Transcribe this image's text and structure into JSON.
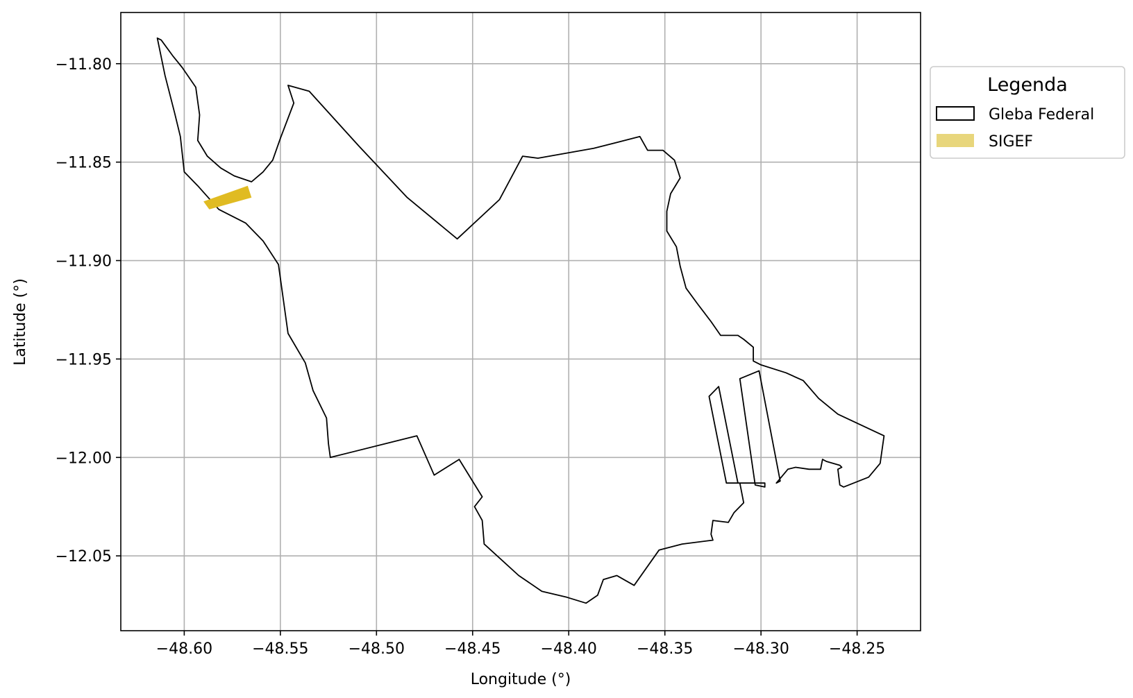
{
  "chart_data": {
    "type": "map",
    "xlabel": "Longitude (°)",
    "ylabel": "Latitude (°)",
    "xlim": [
      -48.633,
      -48.217
    ],
    "ylim": [
      -12.088,
      -11.774
    ],
    "x_ticks": [
      -48.6,
      -48.55,
      -48.5,
      -48.45,
      -48.4,
      -48.35,
      -48.3,
      -48.25
    ],
    "x_tick_labels": [
      "−48.60",
      "−48.55",
      "−48.50",
      "−48.45",
      "−48.40",
      "−48.35",
      "−48.30",
      "−48.25"
    ],
    "y_ticks": [
      -11.8,
      -11.85,
      -11.9,
      -11.95,
      -12.0,
      -12.05
    ],
    "y_tick_labels": [
      "−11.80",
      "−11.85",
      "−11.90",
      "−11.95",
      "−12.00",
      "−12.05"
    ],
    "grid": true,
    "legend": {
      "title": "Legenda",
      "placement": "outside-upper-right",
      "entries": [
        {
          "label": "Gleba Federal",
          "style": "outline",
          "edge_color": "#000000",
          "fill_color": "#ffffff"
        },
        {
          "label": "SIGEF",
          "style": "filled",
          "fill_color": "#e8d67c"
        }
      ]
    },
    "layers": [
      {
        "name": "Gleba Federal",
        "edge_color": "#000000",
        "fill": "none",
        "polygons": [
          [
            [
              -48.614,
              -11.787
            ],
            [
              -48.612,
              -11.788
            ],
            [
              -48.606,
              -11.796
            ],
            [
              -48.601,
              -11.802
            ],
            [
              -48.594,
              -11.812
            ],
            [
              -48.592,
              -11.826
            ],
            [
              -48.593,
              -11.839
            ],
            [
              -48.588,
              -11.847
            ],
            [
              -48.581,
              -11.853
            ],
            [
              -48.574,
              -11.857
            ],
            [
              -48.565,
              -11.86
            ],
            [
              -48.559,
              -11.855
            ],
            [
              -48.554,
              -11.849
            ],
            [
              -48.55,
              -11.838
            ],
            [
              -48.543,
              -11.82
            ],
            [
              -48.546,
              -11.811
            ],
            [
              -48.535,
              -11.814
            ],
            [
              -48.509,
              -11.842
            ],
            [
              -48.484,
              -11.868
            ],
            [
              -48.458,
              -11.889
            ],
            [
              -48.436,
              -11.869
            ],
            [
              -48.424,
              -11.847
            ],
            [
              -48.416,
              -11.848
            ],
            [
              -48.387,
              -11.843
            ],
            [
              -48.363,
              -11.837
            ],
            [
              -48.359,
              -11.844
            ],
            [
              -48.351,
              -11.844
            ],
            [
              -48.345,
              -11.849
            ],
            [
              -48.342,
              -11.858
            ],
            [
              -48.347,
              -11.866
            ],
            [
              -48.349,
              -11.875
            ],
            [
              -48.349,
              -11.885
            ],
            [
              -48.344,
              -11.893
            ],
            [
              -48.342,
              -11.903
            ],
            [
              -48.339,
              -11.914
            ],
            [
              -48.333,
              -11.922
            ],
            [
              -48.326,
              -11.931
            ],
            [
              -48.321,
              -11.938
            ],
            [
              -48.312,
              -11.938
            ],
            [
              -48.309,
              -11.94
            ],
            [
              -48.304,
              -11.944
            ],
            [
              -48.304,
              -11.951
            ],
            [
              -48.3,
              -11.953
            ],
            [
              -48.287,
              -11.957
            ],
            [
              -48.278,
              -11.961
            ],
            [
              -48.27,
              -11.97
            ],
            [
              -48.26,
              -11.978
            ],
            [
              -48.236,
              -11.989
            ],
            [
              -48.238,
              -12.003
            ],
            [
              -48.244,
              -12.01
            ],
            [
              -48.257,
              -12.015
            ],
            [
              -48.259,
              -12.014
            ],
            [
              -48.26,
              -12.006
            ],
            [
              -48.258,
              -12.005
            ],
            [
              -48.259,
              -12.004
            ],
            [
              -48.266,
              -12.002
            ],
            [
              -48.268,
              -12.001
            ],
            [
              -48.269,
              -12.006
            ],
            [
              -48.275,
              -12.006
            ],
            [
              -48.282,
              -12.005
            ],
            [
              -48.286,
              -12.006
            ],
            [
              -48.292,
              -12.013
            ],
            [
              -48.29,
              -12.012
            ],
            [
              -48.301,
              -11.956
            ],
            [
              -48.311,
              -11.96
            ],
            [
              -48.303,
              -12.014
            ],
            [
              -48.298,
              -12.015
            ],
            [
              -48.298,
              -12.013
            ],
            [
              -48.312,
              -12.013
            ],
            [
              -48.322,
              -11.964
            ],
            [
              -48.327,
              -11.969
            ],
            [
              -48.318,
              -12.013
            ],
            [
              -48.311,
              -12.013
            ],
            [
              -48.309,
              -12.023
            ],
            [
              -48.314,
              -12.028
            ],
            [
              -48.317,
              -12.033
            ],
            [
              -48.325,
              -12.032
            ],
            [
              -48.326,
              -12.039
            ],
            [
              -48.325,
              -12.042
            ],
            [
              -48.341,
              -12.044
            ],
            [
              -48.353,
              -12.047
            ],
            [
              -48.366,
              -12.065
            ],
            [
              -48.375,
              -12.06
            ],
            [
              -48.382,
              -12.062
            ],
            [
              -48.385,
              -12.07
            ],
            [
              -48.391,
              -12.074
            ],
            [
              -48.401,
              -12.071
            ],
            [
              -48.414,
              -12.068
            ],
            [
              -48.426,
              -12.06
            ],
            [
              -48.444,
              -12.044
            ],
            [
              -48.445,
              -12.032
            ],
            [
              -48.449,
              -12.025
            ],
            [
              -48.445,
              -12.02
            ],
            [
              -48.457,
              -12.001
            ],
            [
              -48.47,
              -12.009
            ],
            [
              -48.479,
              -11.989
            ],
            [
              -48.524,
              -12.0
            ],
            [
              -48.525,
              -11.993
            ],
            [
              -48.526,
              -11.98
            ],
            [
              -48.533,
              -11.966
            ],
            [
              -48.537,
              -11.952
            ],
            [
              -48.546,
              -11.937
            ],
            [
              -48.551,
              -11.902
            ],
            [
              -48.559,
              -11.89
            ],
            [
              -48.568,
              -11.881
            ],
            [
              -48.582,
              -11.874
            ],
            [
              -48.593,
              -11.862
            ],
            [
              -48.6,
              -11.855
            ],
            [
              -48.602,
              -11.837
            ],
            [
              -48.605,
              -11.825
            ],
            [
              -48.61,
              -11.806
            ],
            [
              -48.614,
              -11.787
            ]
          ]
        ]
      },
      {
        "name": "SIGEF",
        "fill_color": "#e0bb22",
        "polygons": [
          [
            [
              -48.59,
              -11.87
            ],
            [
              -48.567,
              -11.862
            ],
            [
              -48.565,
              -11.868
            ],
            [
              -48.587,
              -11.874
            ]
          ]
        ]
      }
    ]
  }
}
